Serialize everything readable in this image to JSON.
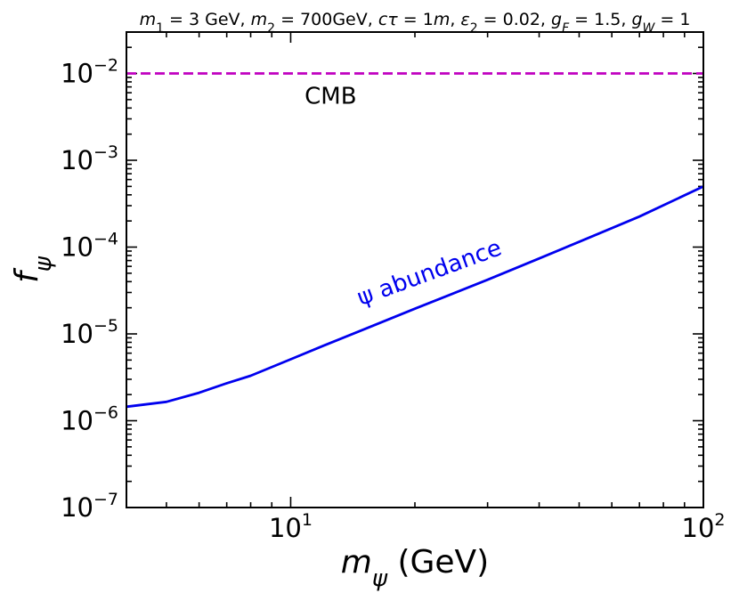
{
  "chart_data": {
    "type": "line",
    "title": {
      "parts": [
        {
          "t": "m",
          "i": true
        },
        {
          "t": "1",
          "sub": true
        },
        {
          "t": " = 3 GeV, "
        },
        {
          "t": "m",
          "i": true
        },
        {
          "t": "2",
          "sub": true
        },
        {
          "t": " = 700GeV, "
        },
        {
          "t": "cτ",
          "i": true
        },
        {
          "t": " = 1"
        },
        {
          "t": "m",
          "i": true
        },
        {
          "t": ", "
        },
        {
          "t": "ε",
          "i": true
        },
        {
          "t": "2",
          "sub": true
        },
        {
          "t": " = 0.02, "
        },
        {
          "t": "g",
          "i": true
        },
        {
          "t": "F",
          "sub": true,
          "i": true
        },
        {
          "t": " = 1.5, "
        },
        {
          "t": "g",
          "i": true
        },
        {
          "t": "W",
          "sub": true,
          "i": true
        },
        {
          "t": " = 1"
        }
      ]
    },
    "xlabel": {
      "parts": [
        {
          "t": "m",
          "i": true
        },
        {
          "t": "ψ",
          "sub": true,
          "i": true
        },
        {
          "t": " (GeV)"
        }
      ]
    },
    "ylabel": {
      "parts": [
        {
          "t": "f",
          "i": true
        },
        {
          "t": "ψ",
          "sub": true,
          "i": true
        }
      ]
    },
    "xscale": "log",
    "yscale": "log",
    "xlim": [
      4,
      100
    ],
    "ylim": [
      1e-07,
      0.03
    ],
    "x_major_ticks": [
      {
        "value": 10,
        "base": "10",
        "exp": "1"
      },
      {
        "value": 100,
        "base": "10",
        "exp": "2"
      }
    ],
    "y_major_ticks": [
      {
        "value": 1e-07,
        "base": "10",
        "exp": "−7"
      },
      {
        "value": 1e-06,
        "base": "10",
        "exp": "−6"
      },
      {
        "value": 1e-05,
        "base": "10",
        "exp": "−5"
      },
      {
        "value": 0.0001,
        "base": "10",
        "exp": "−4"
      },
      {
        "value": 0.001,
        "base": "10",
        "exp": "−3"
      },
      {
        "value": 0.01,
        "base": "10",
        "exp": "−2"
      }
    ],
    "grid": false,
    "series": [
      {
        "name": "ψ abundance",
        "color": "#0000ee",
        "style": "solid",
        "x": [
          4,
          5,
          6,
          7,
          8,
          10,
          12,
          15,
          20,
          30,
          40,
          50,
          70,
          100
        ],
        "y": [
          1.45e-06,
          1.65e-06,
          2.1e-06,
          2.7e-06,
          3.3e-06,
          5.1e-06,
          7.3e-06,
          1.12e-05,
          1.95e-05,
          4.2e-05,
          7.4e-05,
          0.000115,
          0.000225,
          0.0005
        ]
      },
      {
        "name": "CMB",
        "color": "#c000c0",
        "style": "dashed",
        "x": [
          4,
          100
        ],
        "y": [
          0.01,
          0.01
        ]
      }
    ],
    "annotations": [
      {
        "text": "CMB",
        "color": "#000000",
        "x": 12.5,
        "y": 0.0045,
        "rotate": 0
      },
      {
        "text": "ψ abundance",
        "color": "#0000ee",
        "x": 22,
        "y": 4.2e-05,
        "rotate": -20
      }
    ]
  }
}
